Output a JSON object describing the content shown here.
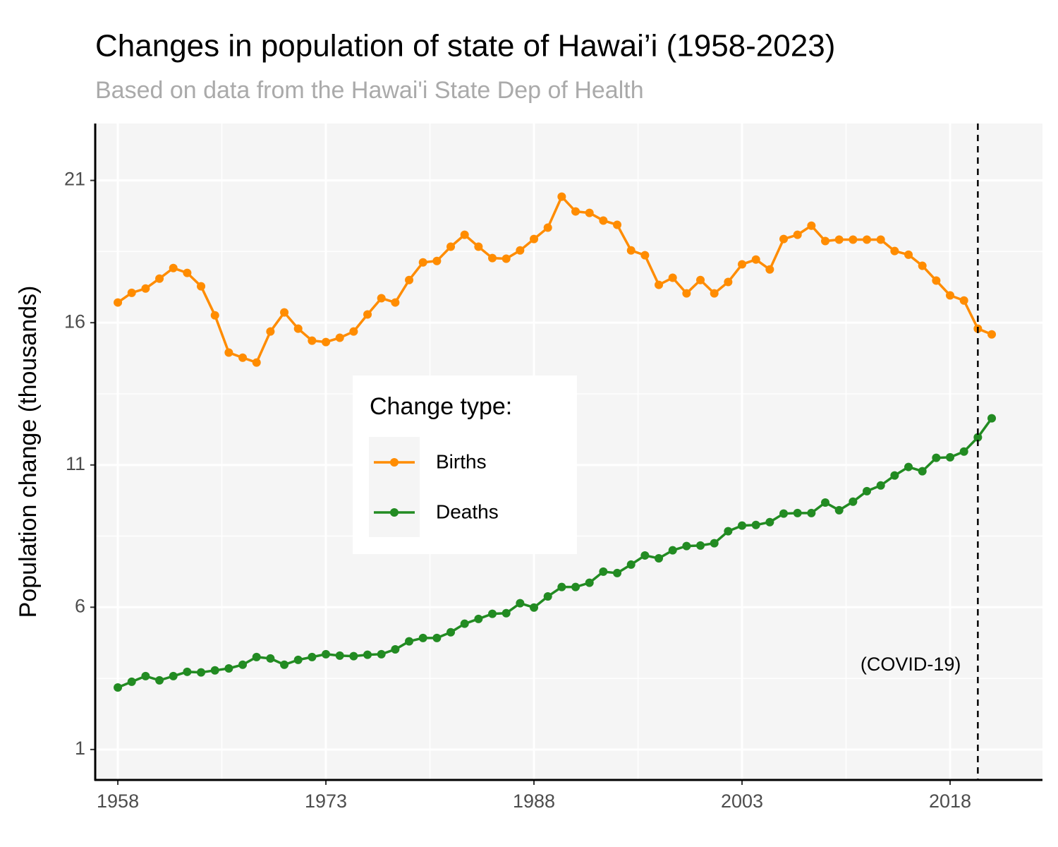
{
  "chart_data": {
    "type": "line",
    "title": "Changes in population of state of Hawai’i (1958-2023)",
    "subtitle": "Based on data from the Hawai'i State Dep of Health",
    "y_label": "Population change (thousands)",
    "legend_title": "Change type:",
    "legend_position": "center",
    "grid": true,
    "x": [
      1958,
      1959,
      1960,
      1961,
      1962,
      1963,
      1964,
      1965,
      1966,
      1967,
      1968,
      1969,
      1970,
      1971,
      1972,
      1973,
      1974,
      1975,
      1976,
      1977,
      1978,
      1979,
      1980,
      1981,
      1982,
      1983,
      1984,
      1985,
      1986,
      1987,
      1988,
      1989,
      1990,
      1991,
      1992,
      1993,
      1994,
      1995,
      1996,
      1997,
      1998,
      1999,
      2000,
      2001,
      2002,
      2003,
      2004,
      2005,
      2006,
      2007,
      2008,
      2009,
      2010,
      2011,
      2012,
      2013,
      2014,
      2015,
      2016,
      2017,
      2018,
      2019,
      2020,
      2021
    ],
    "series": [
      {
        "name": "Births",
        "color": "#ff8c00",
        "values": [
          16.71,
          17.05,
          17.2,
          17.55,
          17.92,
          17.75,
          17.28,
          16.26,
          14.95,
          14.77,
          14.6,
          15.69,
          16.36,
          15.79,
          15.37,
          15.32,
          15.47,
          15.69,
          16.29,
          16.86,
          16.71,
          17.5,
          18.12,
          18.17,
          18.67,
          19.09,
          18.67,
          18.27,
          18.25,
          18.54,
          18.94,
          19.34,
          20.43,
          19.91,
          19.86,
          19.59,
          19.44,
          18.54,
          18.37,
          17.33,
          17.58,
          17.03,
          17.5,
          17.03,
          17.43,
          18.05,
          18.22,
          17.87,
          18.94,
          19.09,
          19.41,
          18.87,
          18.92,
          18.92,
          18.92,
          18.92,
          18.52,
          18.39,
          18.0,
          17.48,
          16.96,
          16.78,
          15.79,
          15.59
        ]
      },
      {
        "name": "Deaths",
        "color": "#228b22",
        "values": [
          3.18,
          3.38,
          3.58,
          3.43,
          3.58,
          3.73,
          3.71,
          3.78,
          3.85,
          3.98,
          4.25,
          4.2,
          3.98,
          4.15,
          4.25,
          4.35,
          4.3,
          4.28,
          4.33,
          4.35,
          4.52,
          4.8,
          4.92,
          4.92,
          5.12,
          5.42,
          5.59,
          5.77,
          5.79,
          6.14,
          5.99,
          6.38,
          6.71,
          6.71,
          6.86,
          7.25,
          7.2,
          7.5,
          7.82,
          7.72,
          8.0,
          8.15,
          8.17,
          8.25,
          8.67,
          8.87,
          8.89,
          8.99,
          9.29,
          9.31,
          9.31,
          9.68,
          9.41,
          9.71,
          10.08,
          10.28,
          10.63,
          10.93,
          10.78,
          11.25,
          11.27,
          11.47,
          11.97,
          12.64
        ]
      }
    ],
    "vline": {
      "x": 2020,
      "label": "(COVID-19)"
    },
    "xlim": [
      1956.37,
      2024.66
    ],
    "xticks": [
      1958,
      1973,
      1988,
      2003,
      2018
    ],
    "ylim": [
      -0.07,
      23.0
    ],
    "yticks": [
      1,
      6,
      11,
      16,
      21
    ]
  }
}
